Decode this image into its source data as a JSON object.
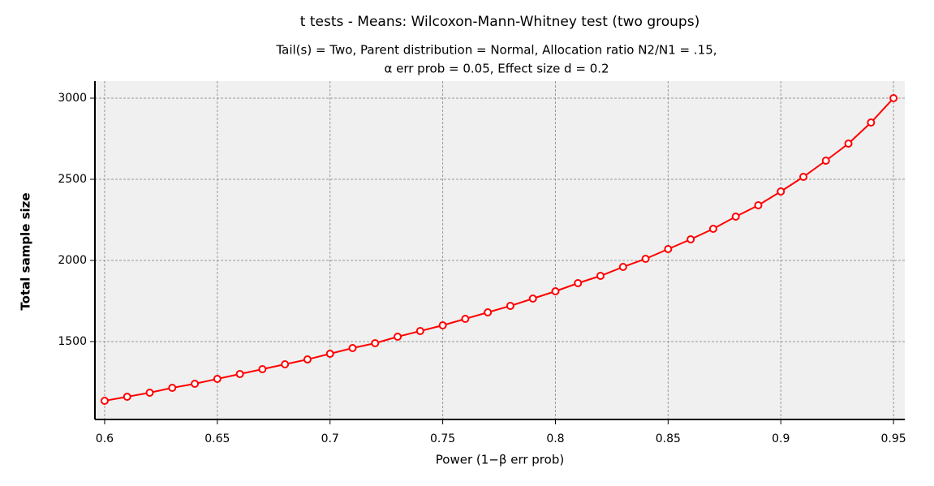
{
  "chart_data": {
    "type": "line",
    "title": "t tests - Means: Wilcoxon-Mann-Whitney test (two groups)",
    "subtitle": [
      "Tail(s) = Two, Parent distribution = Normal, Allocation ratio N2/N1 = .15,",
      "α err prob = 0.05, Effect size d = 0.2"
    ],
    "x_label": "Power (1−β err prob)",
    "y_label": "Total sample size",
    "x": [
      0.6,
      0.61,
      0.62,
      0.63,
      0.64,
      0.65,
      0.66,
      0.67,
      0.68,
      0.69,
      0.7,
      0.71,
      0.72,
      0.73,
      0.74,
      0.75,
      0.76,
      0.77,
      0.78,
      0.79,
      0.8,
      0.81,
      0.82,
      0.83,
      0.84,
      0.85,
      0.86,
      0.87,
      0.88,
      0.89,
      0.9,
      0.91,
      0.92,
      0.93,
      0.94,
      0.95
    ],
    "series": [
      {
        "color": "#ff0000",
        "values": [
          1135,
          1160,
          1185,
          1215,
          1240,
          1270,
          1300,
          1330,
          1360,
          1390,
          1425,
          1460,
          1490,
          1530,
          1565,
          1600,
          1640,
          1680,
          1720,
          1765,
          1810,
          1860,
          1905,
          1960,
          2010,
          2070,
          2130,
          2195,
          2270,
          2340,
          2425,
          2515,
          2615,
          2720,
          2850,
          3000
        ]
      }
    ],
    "xlim": [
      0.5957,
      0.955
    ],
    "ylim": [
      1020,
      3105
    ],
    "xticks": [
      0.6,
      0.65,
      0.7,
      0.75,
      0.8,
      0.85,
      0.9,
      0.95
    ],
    "yticks": [
      1500,
      2000,
      2500,
      3000
    ],
    "grid": true
  }
}
